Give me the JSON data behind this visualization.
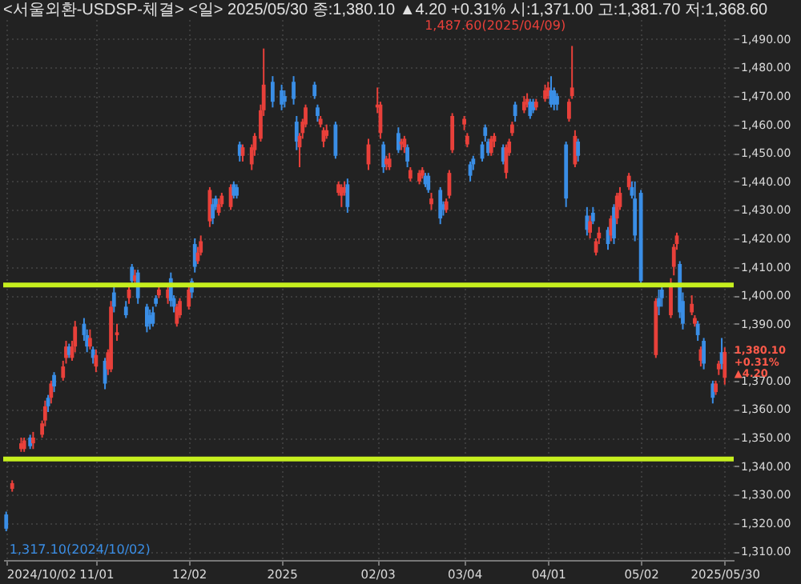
{
  "chart_data": {
    "type": "candlestick",
    "title": "<서울외환-USDSP-체결> <일> 2025/05/30 종:1,380.10 ▲4.20 +0.31% 시:1,371.00 고:1,381.70 저:1,368.60",
    "x": [
      "2024-10-02",
      "2024-10-04",
      "2024-10-07",
      "2024-10-08",
      "2024-10-10",
      "2024-10-11",
      "2024-10-14",
      "2024-10-15",
      "2024-10-16",
      "2024-10-17",
      "2024-10-18",
      "2024-10-21",
      "2024-10-22",
      "2024-10-23",
      "2024-10-24",
      "2024-10-25",
      "2024-10-28",
      "2024-10-29",
      "2024-10-30",
      "2024-10-31",
      "2024-11-01",
      "2024-11-04",
      "2024-11-05",
      "2024-11-06",
      "2024-11-07",
      "2024-11-08",
      "2024-11-11",
      "2024-11-12",
      "2024-11-13",
      "2024-11-14",
      "2024-11-15",
      "2024-11-18",
      "2024-11-19",
      "2024-11-20",
      "2024-11-21",
      "2024-11-22",
      "2024-11-25",
      "2024-11-26",
      "2024-11-27",
      "2024-11-28",
      "2024-11-29",
      "2024-12-02",
      "2024-12-03",
      "2024-12-04",
      "2024-12-05",
      "2024-12-06",
      "2024-12-09",
      "2024-12-10",
      "2024-12-11",
      "2024-12-12",
      "2024-12-13",
      "2024-12-16",
      "2024-12-17",
      "2024-12-18",
      "2024-12-19",
      "2024-12-20",
      "2024-12-23",
      "2024-12-24",
      "2024-12-26",
      "2024-12-27",
      "2024-12-30",
      "2025-01-02",
      "2025-01-03",
      "2025-01-06",
      "2025-01-07",
      "2025-01-08",
      "2025-01-09",
      "2025-01-10",
      "2025-01-13",
      "2025-01-14",
      "2025-01-15",
      "2025-01-16",
      "2025-01-17",
      "2025-01-20",
      "2025-01-21",
      "2025-01-22",
      "2025-01-23",
      "2025-01-24",
      "2025-01-31",
      "2025-02-03",
      "2025-02-04",
      "2025-02-05",
      "2025-02-06",
      "2025-02-07",
      "2025-02-10",
      "2025-02-11",
      "2025-02-12",
      "2025-02-13",
      "2025-02-14",
      "2025-02-17",
      "2025-02-18",
      "2025-02-19",
      "2025-02-20",
      "2025-02-21",
      "2025-02-24",
      "2025-02-25",
      "2025-02-26",
      "2025-02-27",
      "2025-02-28",
      "2025-03-04",
      "2025-03-05",
      "2025-03-06",
      "2025-03-07",
      "2025-03-10",
      "2025-03-11",
      "2025-03-12",
      "2025-03-13",
      "2025-03-14",
      "2025-03-17",
      "2025-03-18",
      "2025-03-19",
      "2025-03-20",
      "2025-03-21",
      "2025-03-24",
      "2025-03-25",
      "2025-03-26",
      "2025-03-27",
      "2025-03-28",
      "2025-03-31",
      "2025-04-01",
      "2025-04-02",
      "2025-04-03",
      "2025-04-04",
      "2025-04-07",
      "2025-04-08",
      "2025-04-09",
      "2025-04-10",
      "2025-04-11",
      "2025-04-14",
      "2025-04-15",
      "2025-04-16",
      "2025-04-17",
      "2025-04-18",
      "2025-04-21",
      "2025-04-22",
      "2025-04-23",
      "2025-04-24",
      "2025-04-25",
      "2025-04-28",
      "2025-04-29",
      "2025-04-30",
      "2025-05-02",
      "2025-05-07",
      "2025-05-08",
      "2025-05-09",
      "2025-05-12",
      "2025-05-13",
      "2025-05-14",
      "2025-05-15",
      "2025-05-16",
      "2025-05-19",
      "2025-05-20",
      "2025-05-21",
      "2025-05-22",
      "2025-05-23",
      "2025-05-26",
      "2025-05-27",
      "2025-05-28",
      "2025-05-29",
      "2025-05-30"
    ],
    "ohlc": [
      [
        1323,
        1324,
        1317.1,
        1318
      ],
      [
        1332,
        1335,
        1331,
        1334
      ],
      [
        1346,
        1350,
        1345,
        1348
      ],
      [
        1346,
        1350,
        1345,
        1349
      ],
      [
        1350,
        1351,
        1346,
        1347
      ],
      [
        1348,
        1352,
        1346,
        1350
      ],
      [
        1351,
        1356,
        1350,
        1355
      ],
      [
        1356,
        1363,
        1354,
        1361
      ],
      [
        1364,
        1365,
        1359,
        1361
      ],
      [
        1364,
        1370,
        1362,
        1369
      ],
      [
        1372,
        1373,
        1366,
        1368
      ],
      [
        1371,
        1377,
        1370,
        1375
      ],
      [
        1378,
        1384,
        1376,
        1382
      ],
      [
        1382,
        1383,
        1378,
        1379
      ],
      [
        1378,
        1384,
        1377,
        1382
      ],
      [
        1382,
        1391,
        1380,
        1389
      ],
      [
        1390,
        1392,
        1384,
        1386
      ],
      [
        1386,
        1388,
        1380,
        1382
      ],
      [
        1382,
        1388,
        1381,
        1385
      ],
      [
        1381,
        1382,
        1376,
        1378
      ],
      [
        1375,
        1381,
        1373,
        1379
      ],
      [
        1377,
        1378,
        1367,
        1369
      ],
      [
        1374,
        1381,
        1372,
        1380
      ],
      [
        1374,
        1398,
        1373,
        1396
      ],
      [
        1401,
        1403,
        1394,
        1396
      ],
      [
        1386,
        1390,
        1384,
        1387
      ],
      [
        1396,
        1398,
        1392,
        1393
      ],
      [
        1399,
        1404,
        1397,
        1402
      ],
      [
        1410,
        1411,
        1404,
        1405
      ],
      [
        1405,
        1409,
        1404,
        1407
      ],
      [
        1408,
        1409,
        1397,
        1399
      ],
      [
        1396,
        1397,
        1387,
        1389
      ],
      [
        1393,
        1395,
        1388,
        1390
      ],
      [
        1394,
        1396,
        1389,
        1390
      ],
      [
        1399,
        1400,
        1396,
        1397
      ],
      [
        1400,
        1403,
        1399,
        1402
      ],
      [
        1399,
        1404,
        1397,
        1402
      ],
      [
        1406,
        1408,
        1396,
        1398
      ],
      [
        1399,
        1400,
        1394,
        1396
      ],
      [
        1390,
        1397,
        1389,
        1396
      ],
      [
        1393,
        1399,
        1392,
        1398
      ],
      [
        1396,
        1403,
        1395,
        1402
      ],
      [
        1405,
        1406,
        1399,
        1401
      ],
      [
        1418,
        1420,
        1408,
        1410
      ],
      [
        1412,
        1417,
        1411,
        1415
      ],
      [
        1415,
        1421,
        1414,
        1419
      ],
      [
        1426,
        1438,
        1424,
        1437
      ],
      [
        1432,
        1434,
        1425,
        1427
      ],
      [
        1434,
        1435,
        1430,
        1431
      ],
      [
        1429,
        1434,
        1428,
        1432
      ],
      [
        1432,
        1436,
        1431,
        1435
      ],
      [
        1431,
        1439,
        1430,
        1438
      ],
      [
        1439,
        1440,
        1434,
        1435
      ],
      [
        1438,
        1439,
        1434,
        1435
      ],
      [
        1453,
        1454,
        1447,
        1449
      ],
      [
        1449,
        1453,
        1447,
        1452
      ],
      [
        1446,
        1453,
        1444,
        1452
      ],
      [
        1451,
        1457,
        1449,
        1456
      ],
      [
        1455,
        1467,
        1454,
        1465
      ],
      [
        1465,
        1486.7,
        1463,
        1474
      ],
      [
        1475,
        1477,
        1466,
        1468
      ],
      [
        1472,
        1474,
        1465,
        1467
      ],
      [
        1470,
        1472,
        1466,
        1468
      ],
      [
        1475,
        1477,
        1467,
        1469
      ],
      [
        1461,
        1463,
        1451,
        1454
      ],
      [
        1452,
        1457,
        1445,
        1456
      ],
      [
        1457,
        1462,
        1455,
        1461
      ],
      [
        1460,
        1467,
        1459,
        1466
      ],
      [
        1474,
        1475,
        1469,
        1470
      ],
      [
        1466,
        1467,
        1461,
        1463
      ],
      [
        1460,
        1463,
        1459,
        1462
      ],
      [
        1454,
        1459,
        1452,
        1458
      ],
      [
        1456,
        1460,
        1455,
        1458
      ],
      [
        1460,
        1461,
        1448,
        1449
      ],
      [
        1436,
        1440,
        1435,
        1439
      ],
      [
        1435,
        1439,
        1431,
        1438
      ],
      [
        1436,
        1440,
        1435,
        1438
      ],
      [
        1439,
        1441,
        1429,
        1431
      ],
      [
        1446,
        1455,
        1444,
        1453
      ],
      [
        1466,
        1473,
        1464,
        1467
      ],
      [
        1457,
        1468,
        1455,
        1467
      ],
      [
        1453,
        1454,
        1443,
        1445
      ],
      [
        1446,
        1449,
        1444,
        1448
      ],
      [
        1445,
        1450,
        1444,
        1448
      ],
      [
        1457,
        1459,
        1450,
        1451
      ],
      [
        1453,
        1455,
        1451,
        1454
      ],
      [
        1452,
        1456,
        1450,
        1455
      ],
      [
        1452,
        1453,
        1445,
        1447
      ],
      [
        1441,
        1445,
        1440,
        1444
      ],
      [
        1440,
        1444,
        1439,
        1443
      ],
      [
        1442,
        1445,
        1441,
        1444
      ],
      [
        1442,
        1443,
        1438,
        1439
      ],
      [
        1442,
        1443,
        1436,
        1437
      ],
      [
        1432,
        1436,
        1430,
        1434
      ],
      [
        1437,
        1438,
        1425,
        1427
      ],
      [
        1432,
        1433,
        1428,
        1430
      ],
      [
        1430,
        1434,
        1429,
        1433
      ],
      [
        1435,
        1444,
        1434,
        1443
      ],
      [
        1451,
        1464,
        1450,
        1463
      ],
      [
        1460,
        1463,
        1458,
        1462
      ],
      [
        1453,
        1457,
        1452,
        1456
      ],
      [
        1446,
        1447,
        1440,
        1442
      ],
      [
        1448,
        1449,
        1444,
        1446
      ],
      [
        1453,
        1454,
        1447,
        1448
      ],
      [
        1459,
        1460,
        1454,
        1456
      ],
      [
        1454,
        1455,
        1449,
        1450
      ],
      [
        1450,
        1456,
        1449,
        1455
      ],
      [
        1454,
        1457,
        1452,
        1456
      ],
      [
        1452,
        1453,
        1446,
        1447
      ],
      [
        1443,
        1453,
        1441,
        1452
      ],
      [
        1450,
        1455,
        1449,
        1454
      ],
      [
        1457,
        1461,
        1456,
        1460
      ],
      [
        1467,
        1468,
        1461,
        1463
      ],
      [
        1465,
        1470,
        1464,
        1468
      ],
      [
        1467,
        1471,
        1466,
        1469
      ],
      [
        1468,
        1469,
        1462,
        1463
      ],
      [
        1468,
        1469,
        1464,
        1465
      ],
      [
        1466,
        1469,
        1465,
        1468
      ],
      [
        1469,
        1474,
        1468,
        1472
      ],
      [
        1470,
        1475,
        1469,
        1473
      ],
      [
        1472,
        1477,
        1466,
        1467
      ],
      [
        1472,
        1473,
        1465,
        1467
      ],
      [
        1470,
        1471,
        1465,
        1467
      ],
      [
        1453,
        1454,
        1431,
        1434
      ],
      [
        1462,
        1469,
        1461,
        1468
      ],
      [
        1470,
        1487.6,
        1469,
        1473
      ],
      [
        1446,
        1458,
        1445,
        1456
      ],
      [
        1454,
        1455,
        1447,
        1449
      ],
      [
        1428,
        1431,
        1421,
        1423
      ],
      [
        1422,
        1428,
        1420,
        1426
      ],
      [
        1429,
        1431,
        1425,
        1426
      ],
      [
        1415,
        1420,
        1414,
        1419
      ],
      [
        1420,
        1424,
        1418,
        1422
      ],
      [
        1423,
        1424,
        1416,
        1418
      ],
      [
        1421,
        1428,
        1419,
        1427
      ],
      [
        1431,
        1432,
        1418,
        1420
      ],
      [
        1427,
        1436,
        1425,
        1435
      ],
      [
        1431,
        1438,
        1430,
        1436
      ],
      [
        1438,
        1443,
        1437,
        1442
      ],
      [
        1438,
        1440,
        1434,
        1435
      ],
      [
        1434,
        1440,
        1419,
        1421
      ],
      [
        1436,
        1437,
        1404,
        1405
      ],
      [
        1379,
        1399,
        1378,
        1398
      ],
      [
        1399,
        1402,
        1393,
        1396
      ],
      [
        1402,
        1404,
        1396,
        1399
      ],
      [
        1393,
        1406,
        1392,
        1404
      ],
      [
        1410,
        1418,
        1407,
        1417
      ],
      [
        1418,
        1422,
        1416,
        1421
      ],
      [
        1411,
        1412,
        1392,
        1394
      ],
      [
        1398,
        1401,
        1388,
        1390
      ],
      [
        1394,
        1400,
        1393,
        1397
      ],
      [
        1390,
        1393,
        1389,
        1392
      ],
      [
        1390,
        1391,
        1384,
        1386
      ],
      [
        1377,
        1382,
        1375,
        1381
      ],
      [
        1384,
        1385,
        1374,
        1376
      ],
      [
        1369,
        1370,
        1362,
        1364
      ],
      [
        1366,
        1370,
        1365,
        1369
      ],
      [
        1374,
        1377,
        1372,
        1376
      ],
      [
        1380,
        1385,
        1374,
        1375.9
      ],
      [
        1371,
        1381.7,
        1368.6,
        1380.1
      ]
    ],
    "colors": [
      "#3a8ee6",
      "#e8403a",
      "#e8403a",
      "#e8403a",
      "#3a8ee6",
      "#e8403a",
      "#e8403a",
      "#e8403a",
      "#3a8ee6",
      "#e8403a",
      "#3a8ee6",
      "#e8403a",
      "#e8403a",
      "#3a8ee6",
      "#e8403a",
      "#e8403a",
      "#3a8ee6",
      "#3a8ee6",
      "#e8403a",
      "#3a8ee6",
      "#e8403a",
      "#3a8ee6",
      "#e8403a",
      "#e8403a",
      "#3a8ee6",
      "#e8403a",
      "#3a8ee6",
      "#e8403a",
      "#3a8ee6",
      "#e8403a",
      "#3a8ee6",
      "#3a8ee6",
      "#3a8ee6",
      "#3a8ee6",
      "#3a8ee6",
      "#e8403a",
      "#e8403a",
      "#3a8ee6",
      "#3a8ee6",
      "#e8403a",
      "#e8403a",
      "#e8403a",
      "#3a8ee6",
      "#3a8ee6",
      "#e8403a",
      "#e8403a",
      "#e8403a",
      "#3a8ee6",
      "#3a8ee6",
      "#e8403a",
      "#e8403a",
      "#e8403a",
      "#3a8ee6",
      "#3a8ee6",
      "#3a8ee6",
      "#e8403a",
      "#e8403a",
      "#e8403a",
      "#e8403a",
      "#e8403a",
      "#3a8ee6",
      "#3a8ee6",
      "#3a8ee6",
      "#3a8ee6",
      "#3a8ee6",
      "#e8403a",
      "#e8403a",
      "#e8403a",
      "#3a8ee6",
      "#3a8ee6",
      "#e8403a",
      "#e8403a",
      "#e8403a",
      "#3a8ee6",
      "#e8403a",
      "#e8403a",
      "#e8403a",
      "#3a8ee6",
      "#e8403a",
      "#e8403a",
      "#e8403a",
      "#3a8ee6",
      "#e8403a",
      "#e8403a",
      "#3a8ee6",
      "#e8403a",
      "#e8403a",
      "#3a8ee6",
      "#e8403a",
      "#e8403a",
      "#e8403a",
      "#3a8ee6",
      "#3a8ee6",
      "#e8403a",
      "#3a8ee6",
      "#3a8ee6",
      "#e8403a",
      "#e8403a",
      "#e8403a",
      "#e8403a",
      "#e8403a",
      "#3a8ee6",
      "#3a8ee6",
      "#3a8ee6",
      "#3a8ee6",
      "#3a8ee6",
      "#e8403a",
      "#e8403a",
      "#3a8ee6",
      "#e8403a",
      "#e8403a",
      "#e8403a",
      "#3a8ee6",
      "#e8403a",
      "#e8403a",
      "#3a8ee6",
      "#3a8ee6",
      "#e8403a",
      "#e8403a",
      "#e8403a",
      "#3a8ee6",
      "#3a8ee6",
      "#3a8ee6",
      "#3a8ee6",
      "#e8403a",
      "#e8403a",
      "#e8403a",
      "#3a8ee6",
      "#3a8ee6",
      "#e8403a",
      "#3a8ee6",
      "#e8403a",
      "#e8403a",
      "#3a8ee6",
      "#e8403a",
      "#3a8ee6",
      "#e8403a",
      "#e8403a",
      "#e8403a",
      "#3a8ee6",
      "#3a8ee6",
      "#3a8ee6",
      "#e8403a",
      "#3a8ee6",
      "#3a8ee6",
      "#e8403a",
      "#e8403a",
      "#e8403a",
      "#3a8ee6",
      "#3a8ee6",
      "#e8403a",
      "#e8403a",
      "#3a8ee6",
      "#e8403a",
      "#3a8ee6",
      "#3a8ee6",
      "#e8403a",
      "#e8403a",
      "#3a8ee6",
      "#e8403a"
    ],
    "xlim": [
      "2024-10-01",
      "2025-06-02"
    ],
    "xticks": [
      {
        "value": "2024-10-02",
        "label": "2024/10/02"
      },
      {
        "value": "2024-11-01",
        "label": "11/01"
      },
      {
        "value": "2024-12-02",
        "label": "12/02"
      },
      {
        "value": "2025-01-02",
        "label": "2025"
      },
      {
        "value": "2025-02-03",
        "label": "02/03"
      },
      {
        "value": "2025-03-04",
        "label": "03/04"
      },
      {
        "value": "2025-04-01",
        "label": "04/01"
      },
      {
        "value": "2025-05-02",
        "label": "05/02"
      },
      {
        "value": "2025-05-30",
        "label": "2025/05/30"
      }
    ],
    "ylim": [
      1307,
      1497
    ],
    "yticks": [
      {
        "value": 1310,
        "label": "1,310.00"
      },
      {
        "value": 1320,
        "label": "1,320.00"
      },
      {
        "value": 1330,
        "label": "1,330.00"
      },
      {
        "value": 1340,
        "label": "1,340.00"
      },
      {
        "value": 1350,
        "label": "1,350.00"
      },
      {
        "value": 1360,
        "label": "1,360.00"
      },
      {
        "value": 1370,
        "label": "1,370.00"
      },
      {
        "value": 1380,
        "label": null
      },
      {
        "value": 1390,
        "label": "1,390.00"
      },
      {
        "value": 1400,
        "label": "1,400.00"
      },
      {
        "value": 1410,
        "label": "1,410.00"
      },
      {
        "value": 1420,
        "label": "1,420.00"
      },
      {
        "value": 1430,
        "label": "1,430.00"
      },
      {
        "value": 1440,
        "label": "1,440.00"
      },
      {
        "value": 1450,
        "label": "1,450.00"
      },
      {
        "value": 1460,
        "label": "1,460.00"
      },
      {
        "value": 1470,
        "label": "1,470.00"
      },
      {
        "value": 1480,
        "label": "1,480.00"
      },
      {
        "value": 1490,
        "label": "1,490.00"
      }
    ],
    "grid": true,
    "ref_lines": [
      {
        "axis": "y",
        "value": 1403.6,
        "color": "#c6ef1e"
      },
      {
        "axis": "y",
        "value": 1342.5,
        "color": "#c6ef1e"
      }
    ],
    "annotations": [
      {
        "text": "1,487.60(2025/04/09)",
        "x": "2025-04-09",
        "y": 1487.6
      },
      {
        "text": "1,317.10(2024/10/02)",
        "x": "2024-10-02",
        "y": 1317.1
      },
      {
        "text": "1,380.10\n+0.31%\n▲4.20",
        "x": "2025-05-30",
        "y": 1380.1
      }
    ]
  }
}
